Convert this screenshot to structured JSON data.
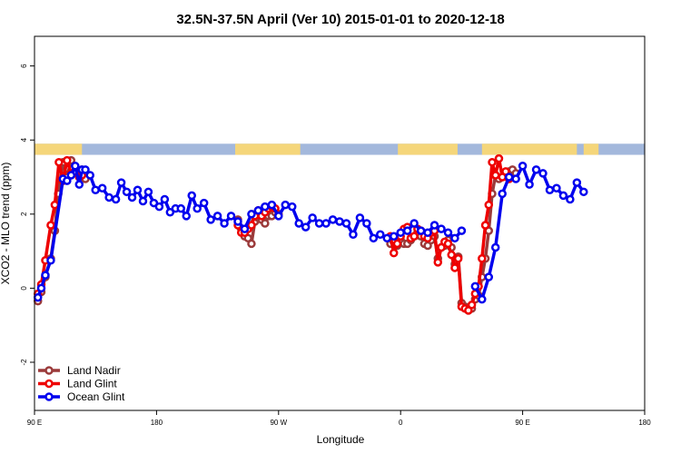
{
  "chart_data": {
    "type": "line",
    "title": "32.5N-37.5N April (Ver 10)   2015-01-01 to 2020-12-18",
    "xlabel": "Longitude",
    "ylabel": "XCO2 - MLO trend (ppm)",
    "xlim": [
      0,
      450
    ],
    "ylim": [
      -3.3,
      6.8
    ],
    "x_ticks": [
      {
        "value": 0,
        "label": "90 E"
      },
      {
        "value": 90,
        "label": "180"
      },
      {
        "value": 180,
        "label": "90 W"
      },
      {
        "value": 270,
        "label": "0"
      },
      {
        "value": 360,
        "label": "90 E"
      },
      {
        "value": 450,
        "label": "180"
      }
    ],
    "y_ticks": [
      {
        "value": -2,
        "label": "-2"
      },
      {
        "value": 0,
        "label": "0"
      },
      {
        "value": 2,
        "label": "2"
      },
      {
        "value": 4,
        "label": "4"
      },
      {
        "value": 6,
        "label": "6"
      }
    ],
    "land_mask_strip": {
      "y_range": [
        3.6,
        3.9
      ],
      "ocean_color": "#a3b8dc",
      "land_color": "#f5d67a",
      "land_segments": [
        [
          0,
          35
        ],
        [
          148,
          196
        ],
        [
          268,
          312
        ],
        [
          330,
          400
        ],
        [
          405,
          416
        ]
      ]
    },
    "legend": {
      "position": "bottom-left"
    },
    "series": [
      {
        "name": "Land Nadir",
        "color": "#9b3a3a",
        "points": [
          [
            2.5,
            -0.35
          ],
          [
            5,
            -0.1
          ],
          [
            8,
            0.3
          ],
          [
            12,
            0.8
          ],
          [
            15,
            1.55
          ],
          [
            17.5,
            2.55
          ],
          [
            21,
            3.4
          ],
          [
            24,
            3.0
          ],
          [
            27,
            3.45
          ],
          [
            30,
            3.15
          ],
          [
            33,
            3.05
          ],
          [
            35,
            3.2
          ],
          [
            37.5,
            2.95
          ],
          null,
          [
            150,
            1.85
          ],
          [
            152.5,
            1.6
          ],
          [
            155,
            1.4
          ],
          [
            157.5,
            1.35
          ],
          [
            160,
            1.2
          ],
          [
            162.5,
            1.8
          ],
          [
            165,
            1.9
          ],
          [
            167.5,
            1.85
          ],
          [
            170,
            1.75
          ],
          [
            172.5,
            1.95
          ],
          [
            175,
            1.95
          ],
          [
            177.5,
            2.05
          ],
          [
            180,
            2.0
          ],
          null,
          [
            262.5,
            1.2
          ],
          [
            265,
            1.25
          ],
          [
            267.5,
            1.15
          ],
          [
            270,
            1.3
          ],
          [
            272.5,
            1.2
          ],
          [
            275,
            1.2
          ],
          [
            277.5,
            1.3
          ],
          [
            280,
            1.4
          ],
          [
            282.5,
            1.5
          ],
          [
            285,
            1.4
          ],
          [
            287.5,
            1.2
          ],
          [
            290,
            1.15
          ],
          [
            292.5,
            1.3
          ],
          [
            295,
            1.4
          ],
          [
            297.5,
            0.8
          ],
          [
            300,
            1.1
          ],
          [
            302.5,
            1.15
          ],
          [
            305,
            1.3
          ],
          [
            307.5,
            1.1
          ],
          [
            310,
            0.65
          ],
          [
            312.5,
            0.85
          ],
          [
            315,
            -0.4
          ],
          [
            317.5,
            -0.5
          ],
          [
            320,
            -0.6
          ],
          [
            322.5,
            -0.55
          ],
          [
            325,
            -0.3
          ],
          [
            327.5,
            -0.2
          ],
          [
            330,
            0.3
          ],
          [
            332.5,
            0.8
          ],
          [
            335,
            1.55
          ],
          [
            337.5,
            2.55
          ],
          [
            340,
            3.05
          ],
          [
            342.5,
            2.95
          ],
          [
            345,
            3.0
          ],
          [
            347.5,
            3.05
          ],
          [
            350,
            3.15
          ],
          [
            352.5,
            3.2
          ],
          [
            355,
            3.1
          ]
        ]
      },
      {
        "name": "Land Glint",
        "color": "#ee0000",
        "points": [
          [
            2.5,
            -0.15
          ],
          [
            5,
            0.1
          ],
          [
            8,
            0.75
          ],
          [
            12,
            1.7
          ],
          [
            15,
            2.25
          ],
          [
            18,
            3.4
          ],
          [
            21,
            2.9
          ],
          [
            24,
            3.45
          ],
          [
            27,
            3.1
          ],
          [
            30,
            3.15
          ],
          [
            33,
            3.0
          ],
          [
            35,
            3.05
          ],
          null,
          [
            150,
            1.7
          ],
          [
            152.5,
            1.5
          ],
          [
            155,
            1.5
          ],
          [
            157.5,
            1.6
          ],
          [
            160,
            1.7
          ],
          [
            162.5,
            1.95
          ],
          [
            165,
            2.1
          ],
          [
            167.5,
            1.95
          ],
          [
            170,
            2.05
          ],
          [
            172.5,
            2.15
          ],
          [
            175,
            2.2
          ],
          [
            177.5,
            2.15
          ],
          null,
          [
            262.5,
            1.4
          ],
          [
            265,
            0.95
          ],
          [
            267.5,
            1.2
          ],
          [
            270,
            1.4
          ],
          [
            272.5,
            1.6
          ],
          [
            275,
            1.65
          ],
          [
            277.5,
            1.35
          ],
          [
            280,
            1.4
          ],
          [
            282.5,
            1.6
          ],
          [
            285,
            1.55
          ],
          [
            287.5,
            1.4
          ],
          [
            290,
            1.35
          ],
          [
            292.5,
            1.5
          ],
          [
            295,
            1.55
          ],
          [
            297.5,
            0.7
          ],
          [
            300,
            1.1
          ],
          [
            302.5,
            1.25
          ],
          [
            305,
            1.2
          ],
          [
            307.5,
            0.9
          ],
          [
            310,
            0.55
          ],
          [
            312.5,
            0.8
          ],
          [
            315,
            -0.5
          ],
          [
            317.5,
            -0.55
          ],
          [
            320,
            -0.6
          ],
          [
            322.5,
            -0.45
          ],
          [
            325,
            -0.15
          ],
          [
            327.5,
            0.05
          ],
          [
            330,
            0.8
          ],
          [
            332.5,
            1.7
          ],
          [
            335,
            2.25
          ],
          [
            337.5,
            3.4
          ],
          [
            340,
            3.05
          ],
          [
            342.5,
            3.5
          ],
          [
            345,
            3.0
          ],
          [
            347.5,
            3.15
          ],
          [
            350,
            2.95
          ]
        ]
      },
      {
        "name": "Ocean Glint",
        "color": "#0000ee",
        "points": [
          [
            2.5,
            -0.25
          ],
          [
            5,
            0.0
          ],
          [
            8,
            0.35
          ],
          [
            12,
            0.75
          ],
          [
            21,
            2.95
          ],
          [
            24,
            2.9
          ],
          [
            27,
            3.05
          ],
          [
            30,
            3.3
          ],
          [
            33,
            2.8
          ],
          [
            35,
            3.2
          ],
          [
            37.5,
            3.2
          ],
          [
            41,
            3.05
          ],
          [
            45,
            2.65
          ],
          [
            50,
            2.7
          ],
          [
            55,
            2.45
          ],
          [
            60,
            2.4
          ],
          [
            64,
            2.85
          ],
          [
            68,
            2.6
          ],
          [
            72,
            2.45
          ],
          [
            76,
            2.65
          ],
          [
            80,
            2.35
          ],
          [
            84,
            2.6
          ],
          [
            88,
            2.3
          ],
          [
            92,
            2.2
          ],
          [
            96,
            2.4
          ],
          [
            100,
            2.05
          ],
          [
            104,
            2.15
          ],
          [
            108,
            2.15
          ],
          [
            112,
            1.95
          ],
          [
            116,
            2.5
          ],
          [
            120,
            2.15
          ],
          [
            125,
            2.3
          ],
          [
            130,
            1.85
          ],
          [
            135,
            1.95
          ],
          [
            140,
            1.75
          ],
          [
            145,
            1.95
          ],
          [
            150,
            1.8
          ],
          [
            155,
            1.6
          ],
          [
            160,
            2.0
          ],
          [
            165,
            2.1
          ],
          [
            170,
            2.2
          ],
          [
            175,
            2.25
          ],
          [
            180,
            1.95
          ],
          [
            185,
            2.25
          ],
          [
            190,
            2.2
          ],
          [
            195,
            1.75
          ],
          [
            200,
            1.65
          ],
          [
            205,
            1.9
          ],
          [
            210,
            1.75
          ],
          [
            215,
            1.75
          ],
          [
            220,
            1.85
          ],
          [
            225,
            1.8
          ],
          [
            230,
            1.75
          ],
          [
            235,
            1.45
          ],
          [
            240,
            1.9
          ],
          [
            245,
            1.75
          ],
          [
            250,
            1.35
          ],
          [
            255,
            1.45
          ],
          [
            260,
            1.35
          ],
          [
            265,
            1.4
          ],
          [
            270,
            1.5
          ],
          [
            275,
            1.55
          ],
          [
            280,
            1.75
          ],
          [
            285,
            1.55
          ],
          [
            290,
            1.5
          ],
          [
            295,
            1.7
          ],
          [
            300,
            1.6
          ],
          [
            305,
            1.5
          ],
          [
            310,
            1.35
          ],
          [
            315,
            1.55
          ],
          null,
          [
            325,
            0.05
          ],
          [
            330,
            -0.3
          ],
          [
            335,
            0.3
          ],
          [
            340,
            1.1
          ],
          [
            345,
            2.55
          ],
          [
            350,
            3.0
          ],
          [
            355,
            2.95
          ],
          [
            360,
            3.3
          ],
          [
            365,
            2.8
          ],
          [
            370,
            3.2
          ],
          [
            375,
            3.1
          ],
          [
            380,
            2.65
          ],
          [
            385,
            2.7
          ],
          [
            390,
            2.5
          ],
          [
            395,
            2.4
          ],
          [
            400,
            2.85
          ],
          [
            405,
            2.6
          ]
        ]
      }
    ]
  }
}
